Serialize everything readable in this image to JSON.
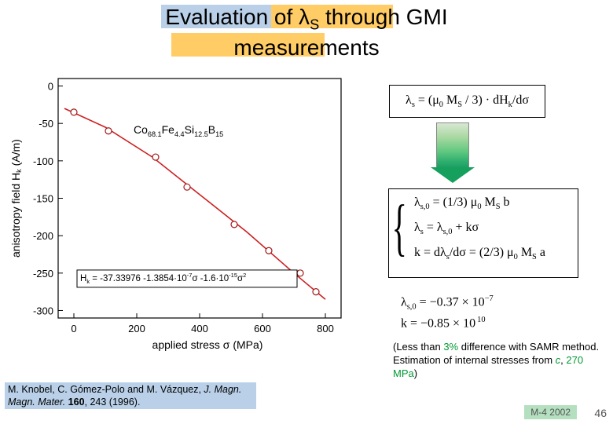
{
  "title": {
    "line1_html": "Evaluation of &lambda;<sub>S</sub> through GMI",
    "line2": "measurements"
  },
  "chart": {
    "type": "line_scatter",
    "material_html": "Co<sub>68.1</sub>Fe<sub>4.4</sub>Si<sub>12.5</sub>B<sub>15</sub>",
    "xlabel_html": "applied stress &sigma; (MPa)",
    "ylabel_html": "anisotropy field H<sub>k</sub> (A/m)",
    "xlim": [
      -50,
      850
    ],
    "ylim": [
      -310,
      10
    ],
    "xticks": [
      0,
      200,
      400,
      600,
      800
    ],
    "yticks": [
      0,
      -50,
      -100,
      -150,
      -200,
      -250,
      -300
    ],
    "points": [
      {
        "x": 0,
        "y": -35
      },
      {
        "x": 110,
        "y": -60
      },
      {
        "x": 260,
        "y": -95
      },
      {
        "x": 360,
        "y": -135
      },
      {
        "x": 510,
        "y": -185
      },
      {
        "x": 620,
        "y": -220
      },
      {
        "x": 720,
        "y": -250
      },
      {
        "x": 770,
        "y": -275
      }
    ],
    "fit_curve": [
      {
        "x": -30,
        "y": -30
      },
      {
        "x": 100,
        "y": -55
      },
      {
        "x": 250,
        "y": -95
      },
      {
        "x": 400,
        "y": -145
      },
      {
        "x": 550,
        "y": -195
      },
      {
        "x": 700,
        "y": -250
      },
      {
        "x": 800,
        "y": -285
      }
    ],
    "colors": {
      "axis": "#000000",
      "curve": "#cc2020",
      "marker_stroke": "#a01818",
      "marker_fill": "#ffffff",
      "bg": "#ffffff"
    },
    "fit_label_html": "H<sub>k</sub> = -37.33976 -1.3854&middot;10<sup>-7</sup>&sigma; -1.6&middot;10<sup>-15</sup>&sigma;<sup>2</sup>",
    "marker_radius": 4,
    "line_width": 1.6,
    "axis_fontsize": 14,
    "tick_fontsize": 13
  },
  "equations": {
    "top_html": "&lambda;<sub>s</sub> = (&mu;<sub>0</sub> M<sub>S</sub> / 3) &middot; dH<sub>k</sub>/d&sigma;",
    "mid1_html": "&lambda;<sub>s,0</sub> = (1/3) &mu;<sub>0</sub> M<sub>S</sub> b",
    "mid2_html": "&lambda;<sub>s</sub> = &lambda;<sub>s,0</sub> + k&sigma;",
    "mid3_html": "k = d&lambda;<sub>s</sub>/d&sigma; = (2/3) &mu;<sub>0</sub> M<sub>S</sub> a",
    "low1_html": "&lambda;<sub>s,0</sub> = &minus;0.37 &times; 10<sup>&minus;7</sup>",
    "low2_html": "k = &minus;0.85 &times; 10<sup>&thinsp;10</sup>"
  },
  "note_html": "(Less than <span class=\"green\">3%</span> difference with SAMR method. Estimation of internal stresses from <span class=\"green\"><i>c</i></span>, <span class=\"green\">270 MPa</span>)",
  "citation_html": "M. Knobel, C. G&oacute;mez-Polo and M. V&aacute;zquez, <i>J. Magn. Magn. Mater.</i> <b>160</b>, 243 (1996).",
  "slidecode": "M-4 2002",
  "pagenum": "46",
  "colors": {
    "hl_blue": "#b9d0e8",
    "hl_orange": "#ffcc66",
    "green_text": "#009933",
    "grad_start": "#d8e8d2",
    "grad_end": "#10985c",
    "slidecode_bg": "#b4e0c0"
  }
}
